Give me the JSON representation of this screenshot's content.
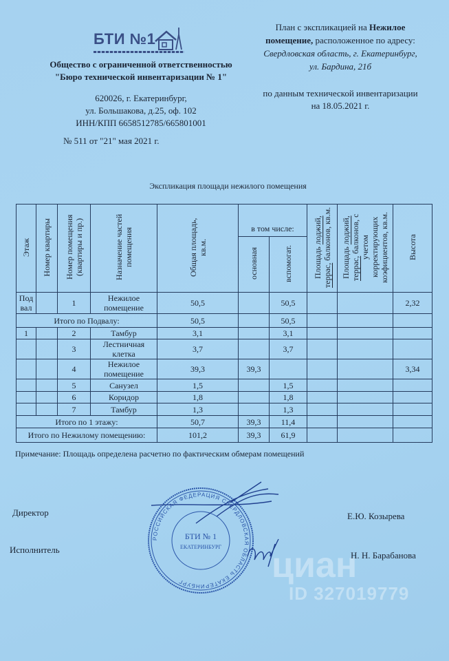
{
  "header": {
    "logo_text": "БТИ №1",
    "org_line1": "Общество с ограниченной ответственностью",
    "org_line2": "\"Бюро технической инвентаризации № 1\"",
    "addr_line1": "620026, г. Екатеринбург,",
    "addr_line2": "ул. Большакова,  д.25, оф. 102",
    "addr_line3": "ИНН/КПП  6658512785/665801001",
    "doc_number": "№ 511 от \"21\" мая 2021 г.",
    "plan_prefix": "План с экспликацией на ",
    "plan_bold1": "Нежилое",
    "plan_bold2": "помещение,",
    "plan_suffix": " расположенное по адресу:",
    "object_addr1": "Свердловская область, г. Екатеринбург,",
    "object_addr2": "ул. Бардина, 21б",
    "inventory_line1": "по данным технической инвентаризации",
    "inventory_line2": "на  18.05.2021 г."
  },
  "table_title": "Экспликация площади нежилого помещения",
  "columns": {
    "floor": "Этаж",
    "apartment": "Номер квартиры",
    "room_no": "Номер помещения (квартиры и пр.)",
    "purpose": "Назначение частей помещения",
    "total": "Общая площадь, кв.м.",
    "incl": "в том числе:",
    "main": "основная",
    "aux": "вспомогат.",
    "loggia_pre": "Площадь ",
    "loggia_u1": "лоджий,",
    "loggia_u2": "террас,",
    "loggia_post": " балконов, кв.м.",
    "loggia_k_post": " балконов, с учетом корректирующих коэфициентов, кв.м.",
    "height": "Высота"
  },
  "rows": [
    {
      "type": "room",
      "floor": "Под вал",
      "apt": "",
      "num": "1",
      "name": "Нежилое помещение",
      "total": "50,5",
      "main": "",
      "aux": "50,5",
      "loggia": "",
      "loggia_k": "",
      "height": "2,32"
    },
    {
      "type": "sum",
      "label": "Итого по Подвалу:",
      "total": "50,5",
      "main": "",
      "aux": "50,5"
    },
    {
      "type": "room",
      "floor": "1",
      "apt": "",
      "num": "2",
      "name": "Тамбур",
      "total": "3,1",
      "main": "",
      "aux": "3,1",
      "loggia": "",
      "loggia_k": "",
      "height": ""
    },
    {
      "type": "room",
      "floor": "",
      "apt": "",
      "num": "3",
      "name": "Лестничная клетка",
      "total": "3,7",
      "main": "",
      "aux": "3,7",
      "loggia": "",
      "loggia_k": "",
      "height": ""
    },
    {
      "type": "room",
      "floor": "",
      "apt": "",
      "num": "4",
      "name": "Нежилое помещение",
      "total": "39,3",
      "main": "39,3",
      "aux": "",
      "loggia": "",
      "loggia_k": "",
      "height": "3,34"
    },
    {
      "type": "room",
      "floor": "",
      "apt": "",
      "num": "5",
      "name": "Санузел",
      "total": "1,5",
      "main": "",
      "aux": "1,5",
      "loggia": "",
      "loggia_k": "",
      "height": ""
    },
    {
      "type": "room",
      "floor": "",
      "apt": "",
      "num": "6",
      "name": "Коридор",
      "total": "1,8",
      "main": "",
      "aux": "1,8",
      "loggia": "",
      "loggia_k": "",
      "height": ""
    },
    {
      "type": "room",
      "floor": "",
      "apt": "",
      "num": "7",
      "name": "Тамбур",
      "total": "1,3",
      "main": "",
      "aux": "1,3",
      "loggia": "",
      "loggia_k": "",
      "height": ""
    },
    {
      "type": "sum",
      "label": "Итого по 1 этажу:",
      "total": "50,7",
      "main": "39,3",
      "aux": "11,4"
    },
    {
      "type": "sum",
      "label": "Итого по Нежилому помещению:",
      "total": "101,2",
      "main": "39,3",
      "aux": "61,9"
    }
  ],
  "note": "Примечание: Площадь определена расчетно по фактическим обмерам помещений",
  "signatures": {
    "director_label": "Директор",
    "director_name": "Е.Ю. Козырева",
    "executor_label": "Исполнитель",
    "executor_name": "Н. Н. Барабанова"
  },
  "stamp": {
    "ring_text": "РОССИЙСКАЯ ФЕДЕРАЦИЯ СВЕРДЛОВСКАЯ ОБЛАСТЬ ЕКАТЕРИНБУРГ",
    "center_line1": "БТИ № 1",
    "center_line2": "ЕКАТЕРИНБУРГ"
  },
  "watermark": {
    "brand": "циан",
    "id": "ID 327019779"
  },
  "colors": {
    "paper": "#a9d5f2",
    "ink": "#1b2433",
    "stamp": "#2a55a8",
    "logo": "#3a4f86"
  }
}
